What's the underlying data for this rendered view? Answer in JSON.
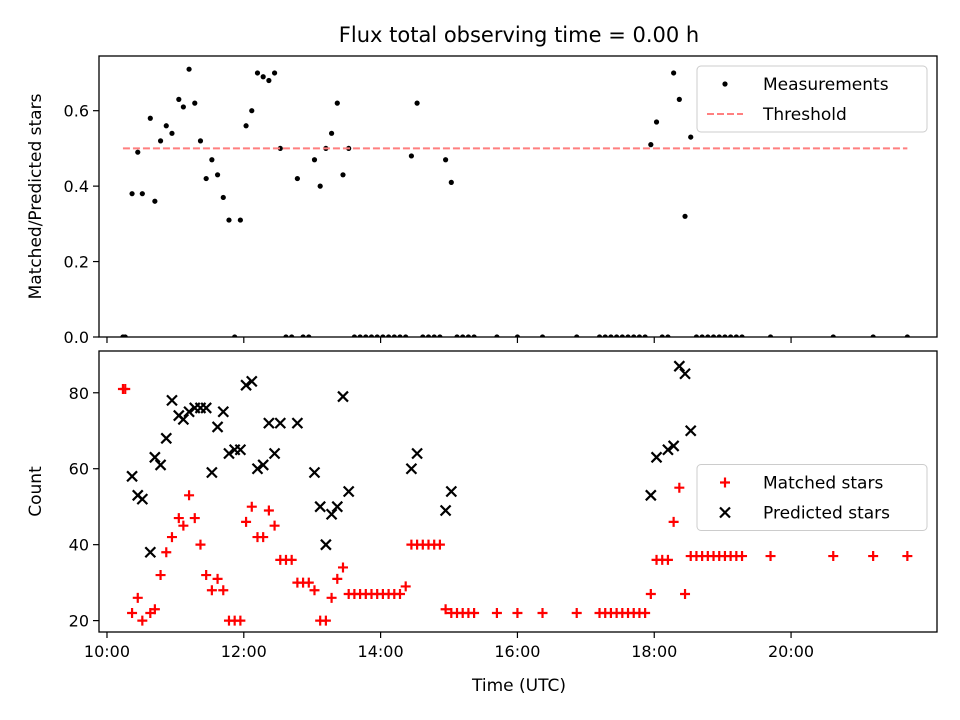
{
  "figure": {
    "title": "Flux total observing time = 0.00 h",
    "xlabel": "Time (UTC)"
  },
  "chart_data": [
    {
      "type": "scatter",
      "ylabel": "Matched/Predicted stars",
      "xlim": [
        "09:53",
        "22:08"
      ],
      "ylim": [
        0,
        0.745
      ],
      "yticks": [
        0.0,
        0.2,
        0.4,
        0.6
      ],
      "xticks": [
        "10:00",
        "12:00",
        "14:00",
        "16:00",
        "18:00",
        "20:00"
      ],
      "show_xticklabels": false,
      "legend": "top-right",
      "series": [
        {
          "name": "Measurements",
          "marker": "dot",
          "color": "#000000",
          "points": [
            [
              "10:14",
              0
            ],
            [
              "10:16",
              0
            ],
            [
              "10:22",
              0.38
            ],
            [
              "10:27",
              0.49
            ],
            [
              "10:31",
              0.38
            ],
            [
              "10:38",
              0.58
            ],
            [
              "10:42",
              0.36
            ],
            [
              "10:47",
              0.52
            ],
            [
              "10:52",
              0.56
            ],
            [
              "10:57",
              0.54
            ],
            [
              "11:03",
              0.63
            ],
            [
              "11:07",
              0.61
            ],
            [
              "11:12",
              0.71
            ],
            [
              "11:17",
              0.62
            ],
            [
              "11:22",
              0.52
            ],
            [
              "11:27",
              0.42
            ],
            [
              "11:32",
              0.47
            ],
            [
              "11:37",
              0.43
            ],
            [
              "11:42",
              0.37
            ],
            [
              "11:47",
              0.31
            ],
            [
              "11:52",
              0
            ],
            [
              "11:57",
              0.31
            ],
            [
              "12:02",
              0.56
            ],
            [
              "12:07",
              0.6
            ],
            [
              "12:12",
              0.7
            ],
            [
              "12:17",
              0.69
            ],
            [
              "12:22",
              0.68
            ],
            [
              "12:27",
              0.7
            ],
            [
              "12:32",
              0.5
            ],
            [
              "12:37",
              0
            ],
            [
              "12:42",
              0
            ],
            [
              "12:47",
              0.42
            ],
            [
              "12:52",
              0
            ],
            [
              "12:57",
              0
            ],
            [
              "13:02",
              0.47
            ],
            [
              "13:07",
              0.4
            ],
            [
              "13:12",
              0.5
            ],
            [
              "13:17",
              0.54
            ],
            [
              "13:22",
              0.62
            ],
            [
              "13:27",
              0.43
            ],
            [
              "13:32",
              0.5
            ],
            [
              "13:37",
              0
            ],
            [
              "13:42",
              0
            ],
            [
              "13:47",
              0
            ],
            [
              "13:52",
              0
            ],
            [
              "13:57",
              0
            ],
            [
              "14:02",
              0
            ],
            [
              "14:07",
              0
            ],
            [
              "14:12",
              0
            ],
            [
              "14:17",
              0
            ],
            [
              "14:22",
              0
            ],
            [
              "14:27",
              0.48
            ],
            [
              "14:32",
              0.62
            ],
            [
              "14:37",
              0
            ],
            [
              "14:42",
              0
            ],
            [
              "14:47",
              0
            ],
            [
              "14:52",
              0
            ],
            [
              "14:57",
              0.47
            ],
            [
              "15:02",
              0.41
            ],
            [
              "15:07",
              0
            ],
            [
              "15:12",
              0
            ],
            [
              "15:17",
              0
            ],
            [
              "15:22",
              0
            ],
            [
              "15:42",
              0
            ],
            [
              "16:00",
              0
            ],
            [
              "16:22",
              0
            ],
            [
              "16:52",
              0
            ],
            [
              "17:12",
              0
            ],
            [
              "17:17",
              0
            ],
            [
              "17:22",
              0
            ],
            [
              "17:27",
              0
            ],
            [
              "17:32",
              0
            ],
            [
              "17:37",
              0
            ],
            [
              "17:42",
              0
            ],
            [
              "17:47",
              0
            ],
            [
              "17:52",
              0
            ],
            [
              "17:57",
              0.51
            ],
            [
              "18:02",
              0.57
            ],
            [
              "18:07",
              0
            ],
            [
              "18:12",
              0
            ],
            [
              "18:17",
              0.7
            ],
            [
              "18:22",
              0.63
            ],
            [
              "18:27",
              0.32
            ],
            [
              "18:32",
              0.53
            ],
            [
              "18:37",
              0
            ],
            [
              "18:42",
              0
            ],
            [
              "18:47",
              0
            ],
            [
              "18:52",
              0
            ],
            [
              "18:57",
              0
            ],
            [
              "19:02",
              0
            ],
            [
              "19:07",
              0
            ],
            [
              "19:12",
              0
            ],
            [
              "19:17",
              0
            ],
            [
              "19:42",
              0
            ],
            [
              "20:37",
              0
            ],
            [
              "21:12",
              0
            ],
            [
              "21:42",
              0
            ]
          ]
        },
        {
          "name": "Threshold",
          "type": "line",
          "style": "dashed",
          "color": "#ff7f7f",
          "points": [
            [
              "10:14",
              0.5
            ],
            [
              "21:42",
              0.5
            ]
          ]
        }
      ]
    },
    {
      "type": "scatter",
      "ylabel": "Count",
      "xlim": [
        "09:53",
        "22:08"
      ],
      "ylim": [
        17,
        91
      ],
      "yticks": [
        20,
        40,
        60,
        80
      ],
      "xticks": [
        "10:00",
        "12:00",
        "14:00",
        "16:00",
        "18:00",
        "20:00"
      ],
      "show_xticklabels": true,
      "legend": "center-right",
      "series": [
        {
          "name": "Matched stars",
          "marker": "plus",
          "color": "#ff0000",
          "points": [
            [
              "10:14",
              81
            ],
            [
              "10:16",
              81
            ],
            [
              "10:22",
              22
            ],
            [
              "10:27",
              26
            ],
            [
              "10:31",
              20
            ],
            [
              "10:38",
              22
            ],
            [
              "10:42",
              23
            ],
            [
              "10:47",
              32
            ],
            [
              "10:52",
              38
            ],
            [
              "10:57",
              42
            ],
            [
              "11:03",
              47
            ],
            [
              "11:07",
              45
            ],
            [
              "11:12",
              53
            ],
            [
              "11:17",
              47
            ],
            [
              "11:22",
              40
            ],
            [
              "11:27",
              32
            ],
            [
              "11:32",
              28
            ],
            [
              "11:37",
              31
            ],
            [
              "11:42",
              28
            ],
            [
              "11:47",
              20
            ],
            [
              "11:52",
              20
            ],
            [
              "11:57",
              20
            ],
            [
              "12:02",
              46
            ],
            [
              "12:07",
              50
            ],
            [
              "12:12",
              42
            ],
            [
              "12:17",
              42
            ],
            [
              "12:22",
              49
            ],
            [
              "12:27",
              45
            ],
            [
              "12:32",
              36
            ],
            [
              "12:37",
              36
            ],
            [
              "12:42",
              36
            ],
            [
              "12:47",
              30
            ],
            [
              "12:52",
              30
            ],
            [
              "12:57",
              30
            ],
            [
              "13:02",
              28
            ],
            [
              "13:07",
              20
            ],
            [
              "13:12",
              20
            ],
            [
              "13:17",
              26
            ],
            [
              "13:22",
              31
            ],
            [
              "13:27",
              34
            ],
            [
              "13:32",
              27
            ],
            [
              "13:37",
              27
            ],
            [
              "13:42",
              27
            ],
            [
              "13:47",
              27
            ],
            [
              "13:52",
              27
            ],
            [
              "13:57",
              27
            ],
            [
              "14:02",
              27
            ],
            [
              "14:07",
              27
            ],
            [
              "14:12",
              27
            ],
            [
              "14:17",
              27
            ],
            [
              "14:22",
              29
            ],
            [
              "14:27",
              40
            ],
            [
              "14:32",
              40
            ],
            [
              "14:37",
              40
            ],
            [
              "14:42",
              40
            ],
            [
              "14:47",
              40
            ],
            [
              "14:52",
              40
            ],
            [
              "14:57",
              23
            ],
            [
              "15:02",
              22
            ],
            [
              "15:07",
              22
            ],
            [
              "15:12",
              22
            ],
            [
              "15:17",
              22
            ],
            [
              "15:22",
              22
            ],
            [
              "15:42",
              22
            ],
            [
              "16:00",
              22
            ],
            [
              "16:22",
              22
            ],
            [
              "16:52",
              22
            ],
            [
              "17:12",
              22
            ],
            [
              "17:17",
              22
            ],
            [
              "17:22",
              22
            ],
            [
              "17:27",
              22
            ],
            [
              "17:32",
              22
            ],
            [
              "17:37",
              22
            ],
            [
              "17:42",
              22
            ],
            [
              "17:47",
              22
            ],
            [
              "17:52",
              22
            ],
            [
              "17:57",
              27
            ],
            [
              "18:02",
              36
            ],
            [
              "18:07",
              36
            ],
            [
              "18:12",
              36
            ],
            [
              "18:17",
              46
            ],
            [
              "18:22",
              55
            ],
            [
              "18:27",
              27
            ],
            [
              "18:32",
              37
            ],
            [
              "18:37",
              37
            ],
            [
              "18:42",
              37
            ],
            [
              "18:47",
              37
            ],
            [
              "18:52",
              37
            ],
            [
              "18:57",
              37
            ],
            [
              "19:02",
              37
            ],
            [
              "19:07",
              37
            ],
            [
              "19:12",
              37
            ],
            [
              "19:17",
              37
            ],
            [
              "19:42",
              37
            ],
            [
              "20:37",
              37
            ],
            [
              "21:12",
              37
            ],
            [
              "21:42",
              37
            ]
          ]
        },
        {
          "name": "Predicted stars",
          "marker": "x",
          "color": "#000000",
          "points": [
            [
              "10:22",
              58
            ],
            [
              "10:27",
              53
            ],
            [
              "10:31",
              52
            ],
            [
              "10:38",
              38
            ],
            [
              "10:42",
              63
            ],
            [
              "10:47",
              61
            ],
            [
              "10:52",
              68
            ],
            [
              "10:57",
              78
            ],
            [
              "11:03",
              74
            ],
            [
              "11:07",
              73
            ],
            [
              "11:12",
              75
            ],
            [
              "11:17",
              76
            ],
            [
              "11:22",
              76
            ],
            [
              "11:27",
              76
            ],
            [
              "11:32",
              59
            ],
            [
              "11:37",
              71
            ],
            [
              "11:42",
              75
            ],
            [
              "11:47",
              64
            ],
            [
              "11:52",
              65
            ],
            [
              "11:57",
              65
            ],
            [
              "12:02",
              82
            ],
            [
              "12:07",
              83
            ],
            [
              "12:12",
              60
            ],
            [
              "12:17",
              61
            ],
            [
              "12:22",
              72
            ],
            [
              "12:27",
              64
            ],
            [
              "12:32",
              72
            ],
            [
              "12:47",
              72
            ],
            [
              "13:02",
              59
            ],
            [
              "13:07",
              50
            ],
            [
              "13:12",
              40
            ],
            [
              "13:17",
              48
            ],
            [
              "13:22",
              50
            ],
            [
              "13:27",
              79
            ],
            [
              "13:32",
              54
            ],
            [
              "14:27",
              60
            ],
            [
              "14:32",
              64
            ],
            [
              "14:57",
              49
            ],
            [
              "15:02",
              54
            ],
            [
              "17:57",
              53
            ],
            [
              "18:02",
              63
            ],
            [
              "18:12",
              65
            ],
            [
              "18:17",
              66
            ],
            [
              "18:22",
              87
            ],
            [
              "18:27",
              85
            ],
            [
              "18:32",
              70
            ]
          ]
        }
      ]
    }
  ]
}
